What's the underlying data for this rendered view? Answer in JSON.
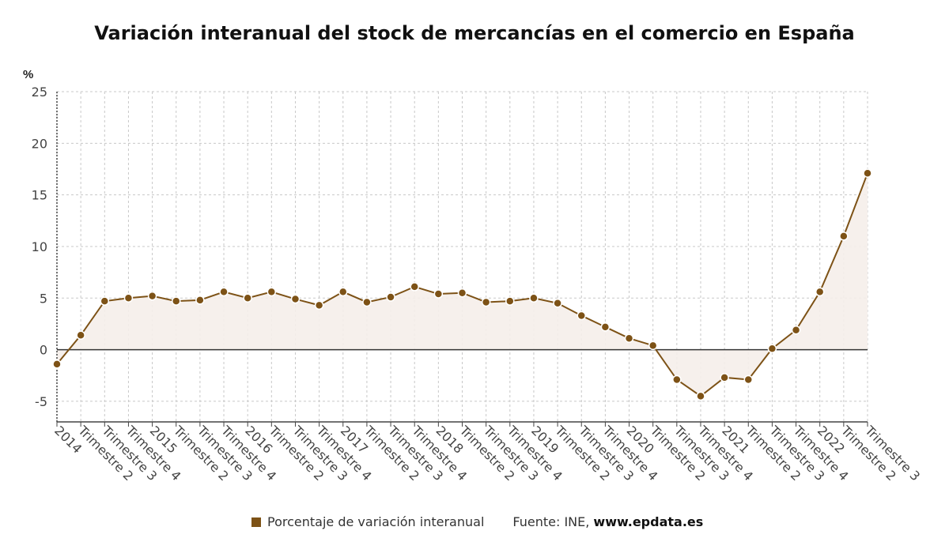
{
  "chart_data": {
    "type": "line",
    "title": "Variación interanual del stock de mercancías en el comercio en España",
    "ylabel": "%",
    "ylim": [
      -7,
      25
    ],
    "yticks": [
      25,
      20,
      15,
      10,
      5,
      0,
      -5
    ],
    "grid": true,
    "legend_placement": "bottom",
    "categories": [
      "2014",
      "Trimestre 2",
      "Trimestre 3",
      "Trimestre 4",
      "2015",
      "Trimestre 2",
      "Trimestre 3",
      "Trimestre 4",
      "2016",
      "Trimestre 2",
      "Trimestre 3",
      "Trimestre 4",
      "2017",
      "Trimestre 2",
      "Trimestre 3",
      "Trimestre 4",
      "2018",
      "Trimestre 2",
      "Trimestre 3",
      "Trimestre 4",
      "2019",
      "Trimestre 2",
      "Trimestre 3",
      "Trimestre 4",
      "2020",
      "Trimestre 2",
      "Trimestre 3",
      "Trimestre 4",
      "2021",
      "Trimestre 2",
      "Trimestre 3",
      "Trimestre 4",
      "2022",
      "Trimestre 2",
      "Trimestre 3"
    ],
    "series": [
      {
        "name": "Porcentaje de variación interanual",
        "color": "#7d5216",
        "values": [
          -1.4,
          1.4,
          4.7,
          5.0,
          5.2,
          4.7,
          4.8,
          5.6,
          5.0,
          5.6,
          4.9,
          4.3,
          5.6,
          4.6,
          5.1,
          6.1,
          5.4,
          5.5,
          4.6,
          4.7,
          5.0,
          4.5,
          3.3,
          2.2,
          1.1,
          0.4,
          -2.9,
          -4.5,
          -2.7,
          -2.9,
          0.1,
          1.9,
          5.6,
          11.0,
          17.1
        ]
      }
    ]
  },
  "legend": {
    "label": "Porcentaje de variación interanual",
    "color": "#7d5216"
  },
  "source": {
    "prefix": "Fuente: INE,",
    "site": "www.epdata.es"
  }
}
